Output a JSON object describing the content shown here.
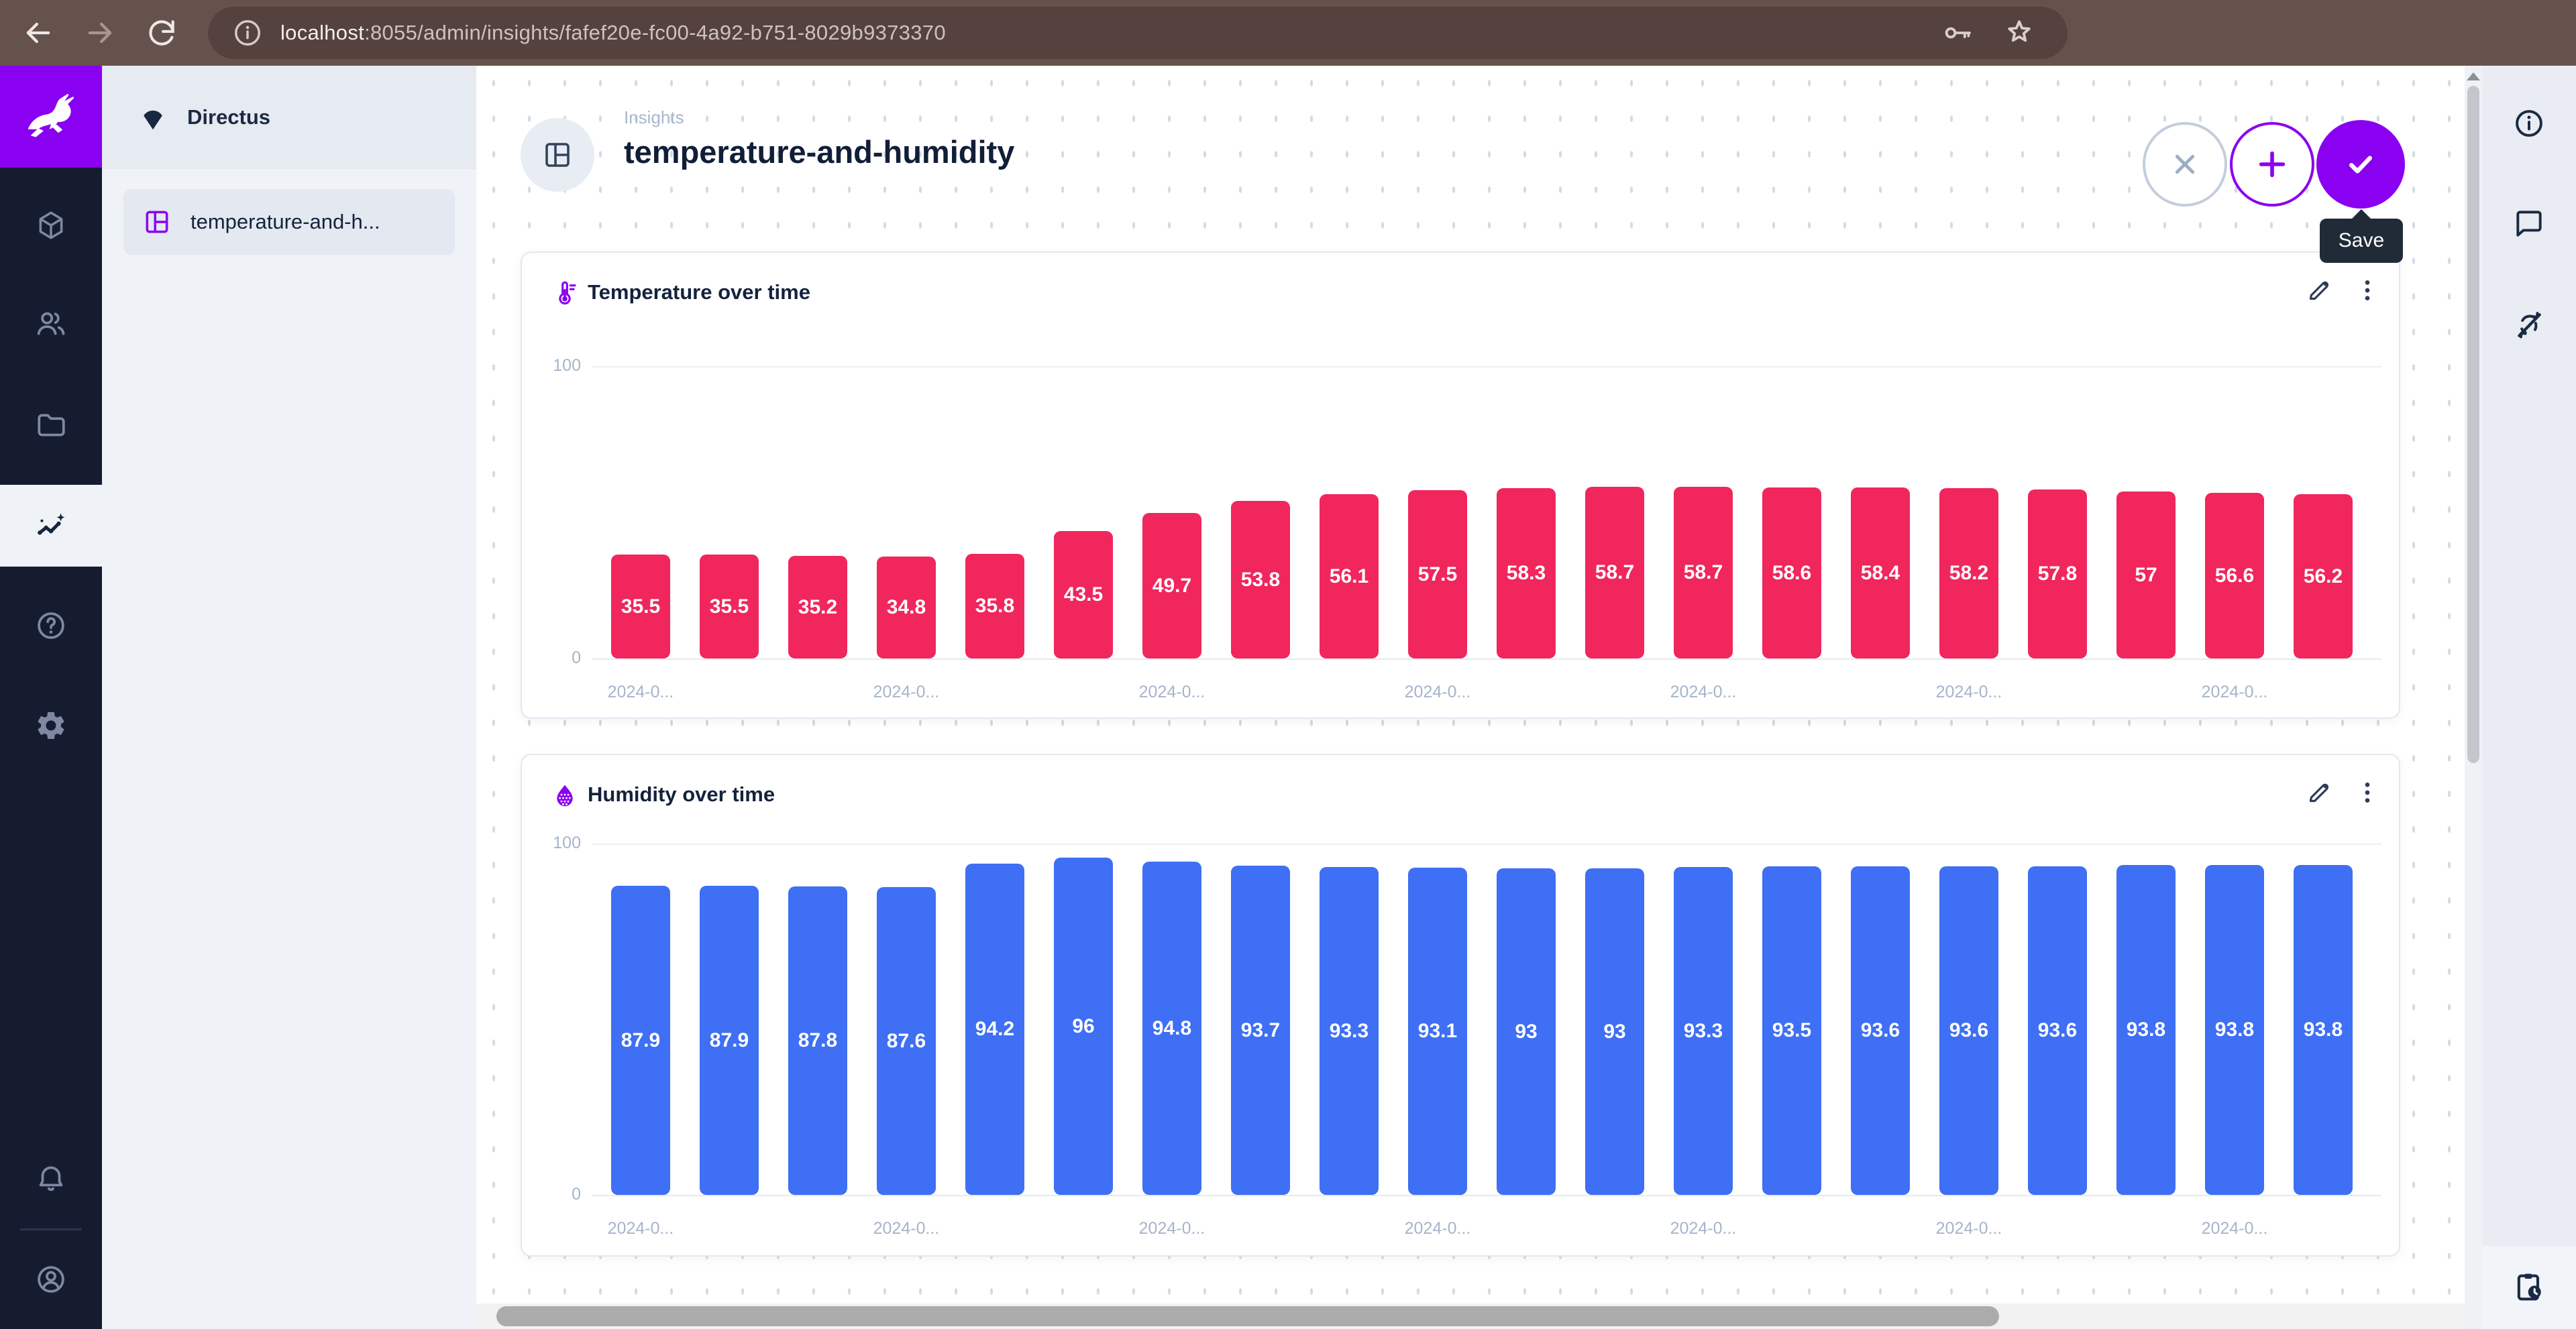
{
  "browser": {
    "url_host": "localhost",
    "url_rest": ":8055/admin/insights/fafef20e-fc00-4a92-b751-8029b9373370"
  },
  "sidebar": {
    "project_name": "Directus",
    "items": [
      {
        "label": "temperature-and-h..."
      }
    ]
  },
  "header": {
    "breadcrumb": "Insights",
    "title": "temperature-and-humidity",
    "save_tooltip": "Save"
  },
  "icons": {
    "browser": [
      "back-icon",
      "forward-icon",
      "refresh-icon",
      "info-icon",
      "key-icon",
      "star-icon"
    ],
    "module_bar": [
      "directus-rabbit-logo",
      "box-icon",
      "users-icon",
      "folder-icon",
      "insights-icon",
      "help-icon",
      "settings-icon",
      "bell-icon",
      "account-icon"
    ],
    "header": [
      "dashboard-icon",
      "close-icon",
      "add-icon",
      "check-icon"
    ],
    "panel": [
      "thermometer-icon",
      "humidity-drop-icon",
      "edit-icon",
      "kebab-menu-icon"
    ],
    "right_sidebar": [
      "info-icon",
      "comment-icon",
      "sync-disabled-icon",
      "clipboard-clock-icon"
    ]
  },
  "colors": {
    "accent_purple": "#8A00F0",
    "temperature_bar": "#F0265D",
    "humidity_bar": "#3E6FF4",
    "module_bar_bg": "#161C30",
    "tooltip_bg": "#212B38",
    "browser_chrome": "#66524C"
  },
  "chart_data": [
    {
      "type": "bar",
      "title": "Temperature over time",
      "ylim": [
        0,
        100
      ],
      "y_ticks": [
        0,
        100
      ],
      "bar_color": "#F0265D",
      "x_tick_text": "2024-0...",
      "x_tick_every": 3,
      "values": [
        35.5,
        35.5,
        35.2,
        34.8,
        35.8,
        43.5,
        49.7,
        53.8,
        56.1,
        57.5,
        58.3,
        58.7,
        58.7,
        58.6,
        58.4,
        58.2,
        57.8,
        57,
        56.6,
        56.2
      ]
    },
    {
      "type": "bar",
      "title": "Humidity over time",
      "ylim": [
        0,
        100
      ],
      "y_ticks": [
        0,
        100
      ],
      "bar_color": "#3E6FF4",
      "x_tick_text": "2024-0...",
      "x_tick_every": 3,
      "values": [
        87.9,
        87.9,
        87.8,
        87.6,
        94.2,
        96,
        94.8,
        93.7,
        93.3,
        93.1,
        93,
        93,
        93.3,
        93.5,
        93.6,
        93.6,
        93.6,
        93.8,
        93.8,
        93.8
      ]
    }
  ]
}
